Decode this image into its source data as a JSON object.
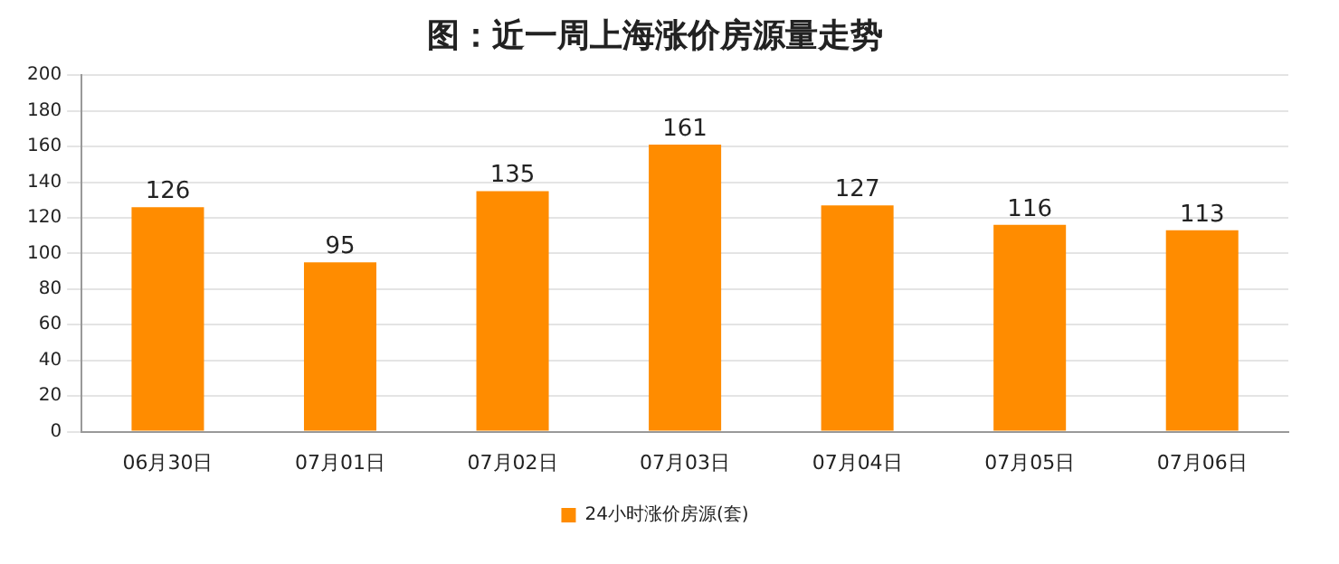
{
  "chart_data": {
    "type": "bar",
    "title": "图：近一周上海涨价房源量走势",
    "categories": [
      "06月30日",
      "07月01日",
      "07月02日",
      "07月03日",
      "07月04日",
      "07月05日",
      "07月06日"
    ],
    "series": [
      {
        "name": "24小时涨价房源(套)",
        "color": "#ff8c00",
        "values": [
          126,
          95,
          135,
          161,
          127,
          116,
          113
        ]
      }
    ],
    "ylim": [
      0,
      200
    ],
    "yticks": [
      0,
      20,
      40,
      60,
      80,
      100,
      120,
      140,
      160,
      180,
      200
    ],
    "grid": "y",
    "legend": "bottom",
    "data_labels": true
  }
}
